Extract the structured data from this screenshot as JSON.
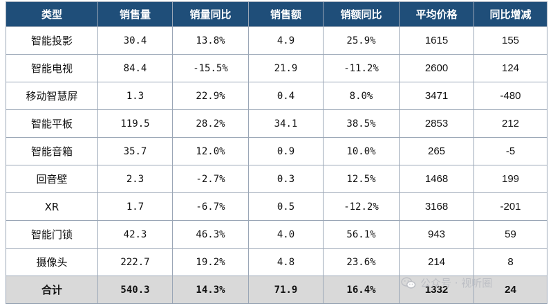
{
  "table": {
    "headers": [
      "类型",
      "销售量",
      "销量同比",
      "销售额",
      "销额同比",
      "平均价格",
      "同比增减"
    ],
    "rows": [
      {
        "type": "智能投影",
        "volume": "30.4",
        "volume_yoy": "13.8%",
        "sales": "4.9",
        "sales_yoy": "25.9%",
        "avg_price": "1615",
        "price_change": "155"
      },
      {
        "type": "智能电视",
        "volume": "84.4",
        "volume_yoy": "-15.5%",
        "sales": "21.9",
        "sales_yoy": "-11.2%",
        "avg_price": "2600",
        "price_change": "124"
      },
      {
        "type": "移动智慧屏",
        "volume": "1.3",
        "volume_yoy": "22.9%",
        "sales": "0.4",
        "sales_yoy": "8.0%",
        "avg_price": "3471",
        "price_change": "-480"
      },
      {
        "type": "智能平板",
        "volume": "119.5",
        "volume_yoy": "28.2%",
        "sales": "34.1",
        "sales_yoy": "38.5%",
        "avg_price": "2853",
        "price_change": "212"
      },
      {
        "type": "智能音箱",
        "volume": "35.7",
        "volume_yoy": "12.0%",
        "sales": "0.9",
        "sales_yoy": "10.0%",
        "avg_price": "265",
        "price_change": "-5"
      },
      {
        "type": "回音壁",
        "volume": "2.3",
        "volume_yoy": "-2.7%",
        "sales": "0.3",
        "sales_yoy": "12.5%",
        "avg_price": "1468",
        "price_change": "199"
      },
      {
        "type": "XR",
        "volume": "1.7",
        "volume_yoy": "-6.7%",
        "sales": "0.5",
        "sales_yoy": "-12.2%",
        "avg_price": "3168",
        "price_change": "-201"
      },
      {
        "type": "智能门锁",
        "volume": "42.3",
        "volume_yoy": "46.3%",
        "sales": "4.0",
        "sales_yoy": "56.1%",
        "avg_price": "943",
        "price_change": "59"
      },
      {
        "type": "摄像头",
        "volume": "222.7",
        "volume_yoy": "19.2%",
        "sales": "4.8",
        "sales_yoy": "23.6%",
        "avg_price": "214",
        "price_change": "8"
      }
    ],
    "total": {
      "type": "合计",
      "volume": "540.3",
      "volume_yoy": "14.3%",
      "sales": "71.9",
      "sales_yoy": "16.4%",
      "avg_price": "1332",
      "price_change": "24"
    }
  },
  "watermark": {
    "text": "公众号 · 视听圈",
    "icon": "wechat-icon"
  },
  "colors": {
    "header_bg": "#1f4e79",
    "positive": "#e8262a",
    "negative": "#1aa34a",
    "total_bg": "#d9d9d9"
  }
}
